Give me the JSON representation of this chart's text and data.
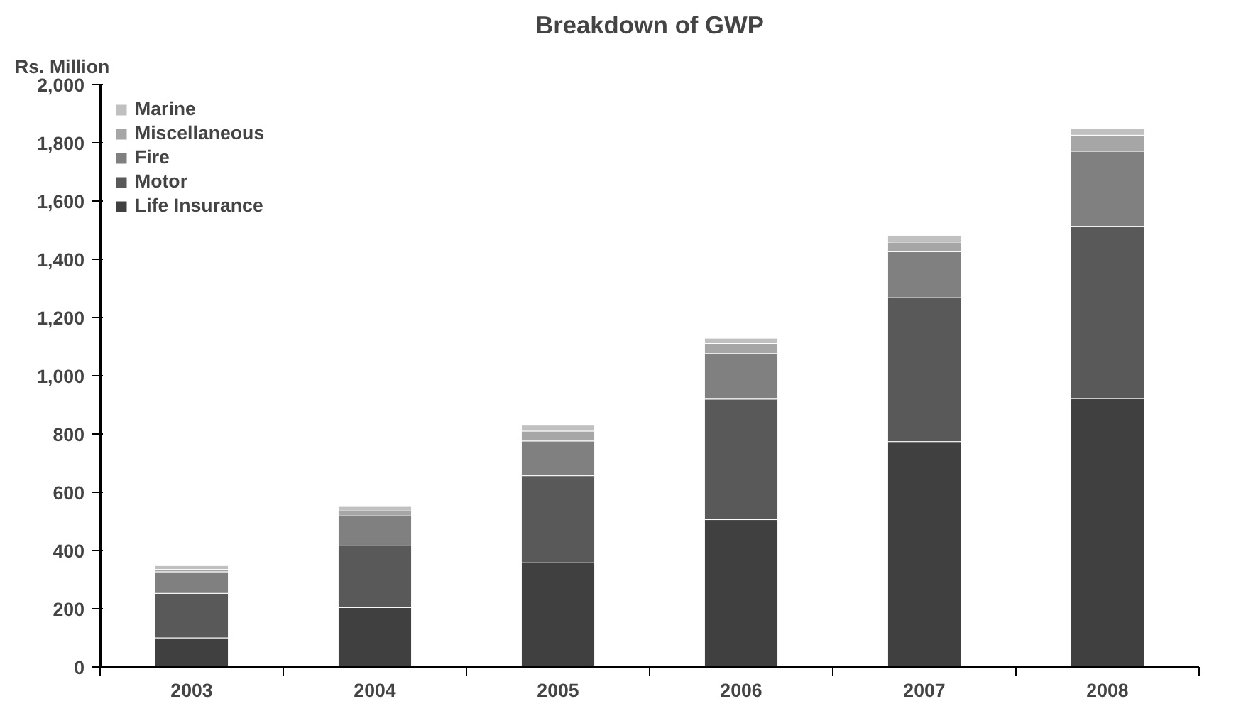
{
  "chart_data": {
    "type": "bar",
    "stacked": true,
    "title": "Breakdown of GWP",
    "ylabel": "Rs. Million",
    "categories": [
      "2003",
      "2004",
      "2005",
      "2006",
      "2007",
      "2008"
    ],
    "series": [
      {
        "name": "Life Insurance",
        "color": "#404040",
        "values": [
          100,
          204,
          358,
          506,
          774,
          922
        ]
      },
      {
        "name": "Motor",
        "color": "#595959",
        "values": [
          153,
          212,
          299,
          414,
          494,
          591
        ]
      },
      {
        "name": "Fire",
        "color": "#808080",
        "values": [
          74,
          103,
          119,
          156,
          158,
          258
        ]
      },
      {
        "name": "Miscellaneous",
        "color": "#a6a6a6",
        "values": [
          8,
          17,
          34,
          35,
          33,
          55
        ]
      },
      {
        "name": "Marine",
        "color": "#c0c0c0",
        "values": [
          13,
          15,
          20,
          18,
          23,
          24
        ]
      }
    ],
    "ylim": [
      0,
      2000
    ],
    "yticks": [
      {
        "value": 0,
        "label": "0"
      },
      {
        "value": 200,
        "label": "200"
      },
      {
        "value": 400,
        "label": "400"
      },
      {
        "value": 600,
        "label": "600"
      },
      {
        "value": 800,
        "label": "800"
      },
      {
        "value": 1000,
        "label": "1,000"
      },
      {
        "value": 1200,
        "label": "1,200"
      },
      {
        "value": 1400,
        "label": "1,400"
      },
      {
        "value": 1600,
        "label": "1,600"
      },
      {
        "value": 1800,
        "label": "1,800"
      },
      {
        "value": 2000,
        "label": "2,000"
      }
    ],
    "grid": false,
    "legend": "top left"
  }
}
